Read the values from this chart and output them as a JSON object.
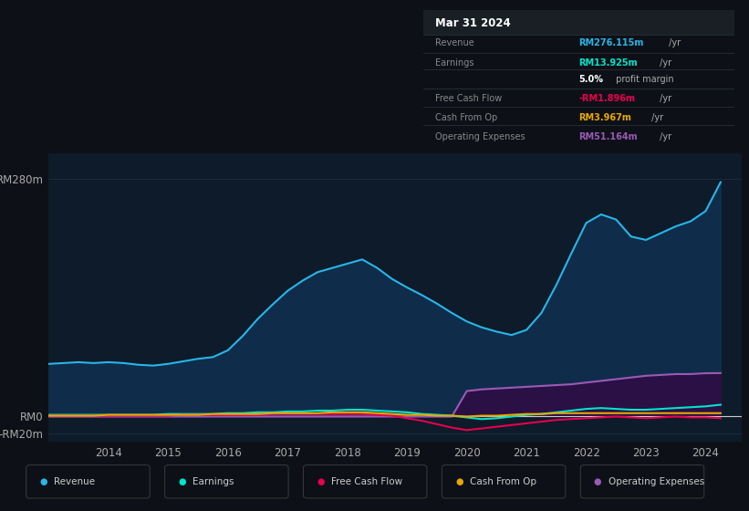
{
  "bg_color": "#0d1117",
  "plot_bg_color": "#0d1b2a",
  "grid_color": "#1e2d3d",
  "yticks_labels": [
    "RM280m",
    "RM0",
    "-RM20m"
  ],
  "yticks_values": [
    280,
    0,
    -20
  ],
  "ylim": [
    -30,
    310
  ],
  "xlim": [
    2013.0,
    2024.6
  ],
  "xticks": [
    2014,
    2015,
    2016,
    2017,
    2018,
    2019,
    2020,
    2021,
    2022,
    2023,
    2024
  ],
  "revenue_color": "#29b5e8",
  "earnings_color": "#00e5cc",
  "fcf_color": "#e8004d",
  "cashop_color": "#e8a800",
  "opex_color": "#9b59b6",
  "revenue_fill_color": "#0f2d4a",
  "opex_fill_color": "#2a1045",
  "legend_items": [
    {
      "label": "Revenue",
      "color": "#29b5e8"
    },
    {
      "label": "Earnings",
      "color": "#00e5cc"
    },
    {
      "label": "Free Cash Flow",
      "color": "#e8004d"
    },
    {
      "label": "Cash From Op",
      "color": "#e8a800"
    },
    {
      "label": "Operating Expenses",
      "color": "#9b59b6"
    }
  ],
  "info_box_title": "Mar 31 2024",
  "info_rows": [
    {
      "label": "Revenue",
      "value": "RM276.115m",
      "unit": " /yr",
      "color": "#29b5e8"
    },
    {
      "label": "Earnings",
      "value": "RM13.925m",
      "unit": " /yr",
      "color": "#00e5cc"
    },
    {
      "label": "",
      "value": "5.0%",
      "unit": " profit margin",
      "color": "#ffffff"
    },
    {
      "label": "Free Cash Flow",
      "value": "-RM1.896m",
      "unit": " /yr",
      "color": "#e8004d"
    },
    {
      "label": "Cash From Op",
      "value": "RM3.967m",
      "unit": " /yr",
      "color": "#e8a800"
    },
    {
      "label": "Operating Expenses",
      "value": "RM51.164m",
      "unit": " /yr",
      "color": "#9b59b6"
    }
  ],
  "years": [
    2013.0,
    2013.25,
    2013.5,
    2013.75,
    2014.0,
    2014.25,
    2014.5,
    2014.75,
    2015.0,
    2015.25,
    2015.5,
    2015.75,
    2016.0,
    2016.25,
    2016.5,
    2016.75,
    2017.0,
    2017.25,
    2017.5,
    2017.75,
    2018.0,
    2018.25,
    2018.5,
    2018.75,
    2019.0,
    2019.25,
    2019.5,
    2019.75,
    2020.0,
    2020.25,
    2020.5,
    2020.75,
    2021.0,
    2021.25,
    2021.5,
    2021.75,
    2022.0,
    2022.25,
    2022.5,
    2022.75,
    2023.0,
    2023.25,
    2023.5,
    2023.75,
    2024.0,
    2024.25
  ],
  "revenue": [
    62,
    63,
    64,
    63,
    64,
    63,
    61,
    60,
    62,
    65,
    68,
    70,
    78,
    95,
    115,
    132,
    148,
    160,
    170,
    175,
    180,
    185,
    175,
    162,
    152,
    143,
    133,
    122,
    112,
    105,
    100,
    96,
    102,
    122,
    155,
    192,
    228,
    238,
    232,
    212,
    208,
    216,
    224,
    230,
    242,
    276
  ],
  "earnings": [
    2,
    2,
    2,
    2,
    2,
    2,
    2,
    2,
    3,
    3,
    3,
    3,
    4,
    4,
    5,
    5,
    6,
    6,
    7,
    7,
    8,
    8,
    7,
    6,
    5,
    3,
    2,
    1,
    -1,
    -3,
    -2,
    0,
    2,
    3,
    5,
    7,
    9,
    10,
    9,
    8,
    8,
    9,
    10,
    11,
    12,
    13.925
  ],
  "fcf": [
    1,
    1,
    1,
    1,
    1,
    1,
    1,
    1,
    1,
    2,
    2,
    2,
    2,
    2,
    2,
    3,
    3,
    3,
    3,
    3,
    3,
    3,
    2,
    1,
    -2,
    -5,
    -9,
    -13,
    -16,
    -14,
    -12,
    -10,
    -8,
    -6,
    -4,
    -3,
    -2,
    -1,
    0,
    -1,
    -2,
    -1,
    0,
    -1,
    -1,
    -1.896
  ],
  "cashop": [
    1,
    1,
    1,
    1,
    2,
    2,
    2,
    2,
    2,
    2,
    2,
    3,
    3,
    3,
    3,
    4,
    4,
    4,
    4,
    5,
    5,
    5,
    4,
    3,
    2,
    2,
    1,
    1,
    0,
    1,
    1,
    2,
    3,
    3,
    4,
    4,
    4,
    4,
    4,
    4,
    4,
    4,
    4,
    4,
    4,
    3.967
  ],
  "opex": [
    0,
    0,
    0,
    0,
    0,
    0,
    0,
    0,
    0,
    0,
    0,
    0,
    0,
    0,
    0,
    0,
    0,
    0,
    0,
    0,
    0,
    0,
    0,
    0,
    0,
    0,
    0,
    0,
    30,
    32,
    33,
    34,
    35,
    36,
    37,
    38,
    40,
    42,
    44,
    46,
    48,
    49,
    50,
    50,
    51,
    51.164
  ]
}
